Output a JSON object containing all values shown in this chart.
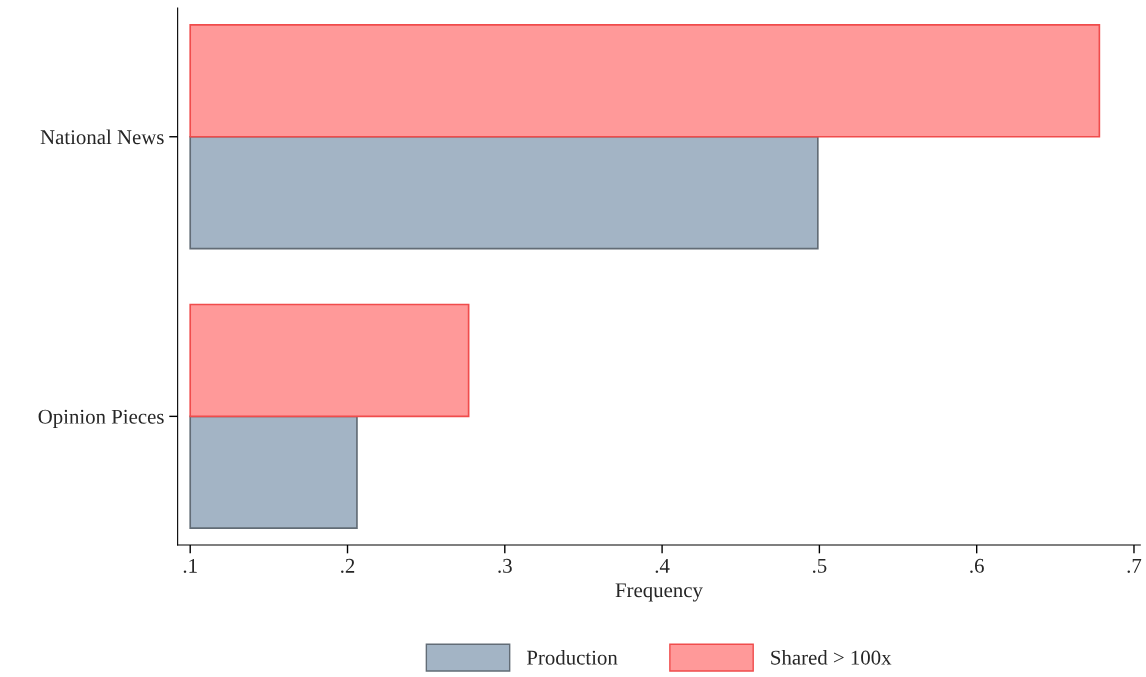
{
  "chart_data": {
    "type": "bar",
    "orientation": "horizontal",
    "xlabel": "Frequency",
    "categories": [
      "National News",
      "Opinion Pieces"
    ],
    "series": [
      {
        "name": "Production",
        "color": "#a3b4c5",
        "base": [
          0.1,
          0.1
        ],
        "values": [
          0.399,
          0.106
        ]
      },
      {
        "name": "Shared > 100x",
        "color": "#ff9999",
        "base": [
          0.1,
          0.1
        ],
        "values": [
          0.578,
          0.177
        ]
      }
    ],
    "xlim": [
      0.092,
      0.704
    ],
    "xticks": [
      {
        "value": 0.1,
        "label": ".1"
      },
      {
        "value": 0.2,
        "label": ".2"
      },
      {
        "value": 0.3,
        "label": ".3"
      },
      {
        "value": 0.4,
        "label": ".4"
      },
      {
        "value": 0.5,
        "label": ".5"
      },
      {
        "value": 0.6,
        "label": ".6"
      },
      {
        "value": 0.7,
        "label": ".7"
      }
    ],
    "grid": false,
    "legend": "bottom"
  }
}
